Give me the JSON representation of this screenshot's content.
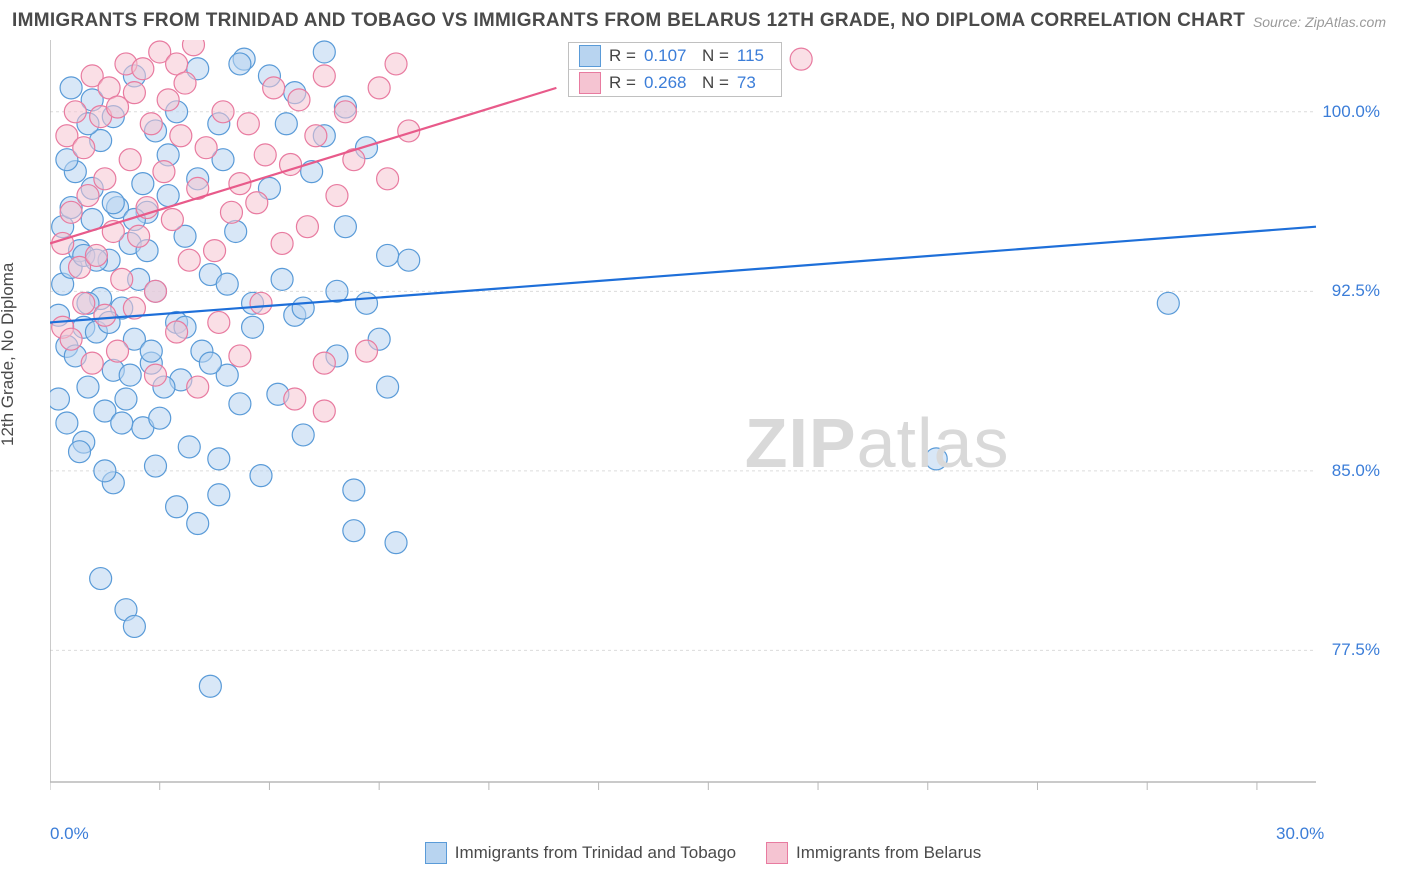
{
  "title": "IMMIGRANTS FROM TRINIDAD AND TOBAGO VS IMMIGRANTS FROM BELARUS 12TH GRADE, NO DIPLOMA CORRELATION CHART",
  "source": "Source: ZipAtlas.com",
  "y_axis_label": "12th Grade, No Diploma",
  "watermark_bold": "ZIP",
  "watermark_light": "atlas",
  "chart": {
    "type": "scatter",
    "background_color": "#ffffff",
    "grid_color": "#dcdcdc",
    "axis_color": "#b8b8b8",
    "tick_color": "#b8b8b8",
    "xlim": [
      0,
      30
    ],
    "ylim": [
      72,
      103
    ],
    "x_tick_labels": [
      {
        "x": 0,
        "label": "0.0%"
      },
      {
        "x": 30,
        "label": "30.0%"
      }
    ],
    "x_minor_ticks": [
      0,
      2.6,
      5.2,
      7.8,
      10.4,
      13,
      15.6,
      18.2,
      20.8,
      23.4,
      26,
      28.6
    ],
    "y_tick_labels": [
      {
        "y": 100,
        "label": "100.0%"
      },
      {
        "y": 92.5,
        "label": "92.5%"
      },
      {
        "y": 85,
        "label": "85.0%"
      },
      {
        "y": 77.5,
        "label": "77.5%"
      }
    ],
    "y_grid": [
      100,
      92.5,
      85,
      77.5
    ],
    "series": [
      {
        "name": "Immigrants from Trinidad and Tobago",
        "color_fill": "#b8d4f0",
        "color_stroke": "#5a9bd8",
        "marker_radius": 11,
        "fill_opacity": 0.55,
        "trend_color": "#1e6fd9",
        "trend_width": 2.2,
        "trend": {
          "x1": 0,
          "y1": 91.2,
          "x2": 30,
          "y2": 95.2
        },
        "R": "0.107",
        "N": "115",
        "points": [
          [
            0.2,
            91.5
          ],
          [
            0.3,
            92.8
          ],
          [
            0.4,
            90.2
          ],
          [
            0.5,
            93.5
          ],
          [
            0.6,
            89.8
          ],
          [
            0.7,
            94.2
          ],
          [
            0.8,
            91.0
          ],
          [
            0.9,
            88.5
          ],
          [
            1.0,
            95.5
          ],
          [
            1.1,
            90.8
          ],
          [
            1.2,
            92.2
          ],
          [
            1.3,
            87.5
          ],
          [
            1.4,
            93.8
          ],
          [
            1.5,
            89.2
          ],
          [
            1.6,
            96.0
          ],
          [
            1.7,
            91.8
          ],
          [
            1.8,
            88.0
          ],
          [
            1.9,
            94.5
          ],
          [
            2.0,
            90.5
          ],
          [
            2.1,
            93.0
          ],
          [
            2.2,
            86.8
          ],
          [
            2.3,
            95.8
          ],
          [
            2.4,
            89.5
          ],
          [
            2.5,
            92.5
          ],
          [
            2.6,
            87.2
          ],
          [
            2.8,
            96.5
          ],
          [
            3.0,
            91.2
          ],
          [
            3.1,
            88.8
          ],
          [
            3.2,
            94.8
          ],
          [
            3.3,
            86.0
          ],
          [
            3.5,
            97.2
          ],
          [
            3.6,
            90.0
          ],
          [
            3.8,
            93.2
          ],
          [
            4.0,
            85.5
          ],
          [
            4.1,
            98.0
          ],
          [
            4.2,
            89.0
          ],
          [
            4.4,
            95.0
          ],
          [
            4.5,
            87.8
          ],
          [
            4.6,
            102.2
          ],
          [
            4.8,
            92.0
          ],
          [
            5.0,
            84.8
          ],
          [
            5.2,
            96.8
          ],
          [
            5.4,
            88.2
          ],
          [
            5.6,
            99.5
          ],
          [
            5.8,
            91.5
          ],
          [
            6.0,
            86.5
          ],
          [
            6.2,
            97.5
          ],
          [
            6.5,
            102.5
          ],
          [
            6.8,
            89.8
          ],
          [
            7.0,
            95.2
          ],
          [
            7.2,
            84.2
          ],
          [
            7.5,
            98.5
          ],
          [
            7.8,
            90.5
          ],
          [
            8.0,
            88.5
          ],
          [
            8.2,
            82.0
          ],
          [
            8.5,
            93.8
          ],
          [
            1.2,
            80.5
          ],
          [
            1.8,
            79.2
          ],
          [
            2.5,
            85.2
          ],
          [
            3.0,
            83.5
          ],
          [
            3.5,
            82.8
          ],
          [
            4.0,
            84.0
          ],
          [
            2.0,
            78.5
          ],
          [
            0.8,
            86.2
          ],
          [
            1.5,
            84.5
          ],
          [
            4.5,
            102.0
          ],
          [
            5.2,
            101.5
          ],
          [
            5.8,
            100.8
          ],
          [
            6.5,
            99.0
          ],
          [
            7.0,
            100.2
          ],
          [
            0.5,
            101.0
          ],
          [
            1.0,
            100.5
          ],
          [
            1.5,
            99.8
          ],
          [
            2.0,
            101.5
          ],
          [
            2.5,
            99.2
          ],
          [
            3.0,
            100.0
          ],
          [
            3.5,
            101.8
          ],
          [
            4.0,
            99.5
          ],
          [
            3.8,
            76.0
          ],
          [
            7.2,
            82.5
          ],
          [
            2.2,
            97.0
          ],
          [
            2.8,
            98.2
          ],
          [
            1.0,
            96.8
          ],
          [
            0.6,
            97.5
          ],
          [
            0.3,
            95.2
          ],
          [
            0.4,
            98.0
          ],
          [
            0.8,
            94.0
          ],
          [
            1.5,
            96.2
          ],
          [
            2.0,
            95.5
          ],
          [
            1.2,
            98.8
          ],
          [
            0.5,
            96.0
          ],
          [
            0.9,
            99.5
          ],
          [
            3.2,
            91.0
          ],
          [
            3.8,
            89.5
          ],
          [
            4.2,
            92.8
          ],
          [
            4.8,
            91.0
          ],
          [
            5.5,
            93.0
          ],
          [
            6.0,
            91.8
          ],
          [
            6.8,
            92.5
          ],
          [
            7.5,
            92.0
          ],
          [
            8.0,
            94.0
          ],
          [
            0.2,
            88.0
          ],
          [
            0.4,
            87.0
          ],
          [
            0.7,
            85.8
          ],
          [
            1.1,
            93.8
          ],
          [
            1.4,
            91.2
          ],
          [
            1.9,
            89.0
          ],
          [
            2.3,
            94.2
          ],
          [
            2.7,
            88.5
          ],
          [
            2.4,
            90.0
          ],
          [
            1.7,
            87.0
          ],
          [
            1.3,
            85.0
          ],
          [
            0.9,
            92.0
          ],
          [
            26.5,
            92.0
          ],
          [
            21.0,
            85.5
          ]
        ]
      },
      {
        "name": "Immigrants from Belarus",
        "color_fill": "#f5c4d2",
        "color_stroke": "#e87ba0",
        "marker_radius": 11,
        "fill_opacity": 0.55,
        "trend_color": "#e85a8a",
        "trend_width": 2.2,
        "trend": {
          "x1": 0,
          "y1": 94.5,
          "x2": 12,
          "y2": 101.0
        },
        "R": "0.268",
        "N": "73",
        "points": [
          [
            0.3,
            94.5
          ],
          [
            0.5,
            95.8
          ],
          [
            0.7,
            93.5
          ],
          [
            0.9,
            96.5
          ],
          [
            1.1,
            94.0
          ],
          [
            1.3,
            97.2
          ],
          [
            1.5,
            95.0
          ],
          [
            1.7,
            93.0
          ],
          [
            1.9,
            98.0
          ],
          [
            2.1,
            94.8
          ],
          [
            2.3,
            96.0
          ],
          [
            2.5,
            92.5
          ],
          [
            2.7,
            97.5
          ],
          [
            2.9,
            95.5
          ],
          [
            3.1,
            99.0
          ],
          [
            3.3,
            93.8
          ],
          [
            3.5,
            96.8
          ],
          [
            3.7,
            98.5
          ],
          [
            3.9,
            94.2
          ],
          [
            4.1,
            100.0
          ],
          [
            4.3,
            95.8
          ],
          [
            4.5,
            97.0
          ],
          [
            4.7,
            99.5
          ],
          [
            4.9,
            96.2
          ],
          [
            5.1,
            98.2
          ],
          [
            5.3,
            101.0
          ],
          [
            5.5,
            94.5
          ],
          [
            5.7,
            97.8
          ],
          [
            5.9,
            100.5
          ],
          [
            6.1,
            95.2
          ],
          [
            6.3,
            99.0
          ],
          [
            6.5,
            101.5
          ],
          [
            6.8,
            96.5
          ],
          [
            7.0,
            100.0
          ],
          [
            7.2,
            98.0
          ],
          [
            7.5,
            90.0
          ],
          [
            7.8,
            101.0
          ],
          [
            8.0,
            97.2
          ],
          [
            8.2,
            102.0
          ],
          [
            8.5,
            99.2
          ],
          [
            0.4,
            99.0
          ],
          [
            0.6,
            100.0
          ],
          [
            0.8,
            98.5
          ],
          [
            1.0,
            101.5
          ],
          [
            1.2,
            99.8
          ],
          [
            1.4,
            101.0
          ],
          [
            1.6,
            100.2
          ],
          [
            1.8,
            102.0
          ],
          [
            2.0,
            100.8
          ],
          [
            2.2,
            101.8
          ],
          [
            2.4,
            99.5
          ],
          [
            2.6,
            102.5
          ],
          [
            2.8,
            100.5
          ],
          [
            3.0,
            102.0
          ],
          [
            3.2,
            101.2
          ],
          [
            3.4,
            102.8
          ],
          [
            0.3,
            91.0
          ],
          [
            0.5,
            90.5
          ],
          [
            0.8,
            92.0
          ],
          [
            1.0,
            89.5
          ],
          [
            1.3,
            91.5
          ],
          [
            1.6,
            90.0
          ],
          [
            2.0,
            91.8
          ],
          [
            2.5,
            89.0
          ],
          [
            3.0,
            90.8
          ],
          [
            3.5,
            88.5
          ],
          [
            4.0,
            91.2
          ],
          [
            4.5,
            89.8
          ],
          [
            5.0,
            92.0
          ],
          [
            5.8,
            88.0
          ],
          [
            6.5,
            89.5
          ],
          [
            17.8,
            102.2
          ],
          [
            6.5,
            87.5
          ]
        ]
      }
    ]
  },
  "legend_top": {
    "rows": [
      {
        "swatch_fill": "#b8d4f0",
        "swatch_stroke": "#5a9bd8",
        "r_label": "R =",
        "r_val": "0.107",
        "n_label": "N =",
        "n_val": "115"
      },
      {
        "swatch_fill": "#f5c4d2",
        "swatch_stroke": "#e87ba0",
        "r_label": "R =",
        "r_val": "0.268",
        "n_label": "N =",
        "n_val": "73"
      }
    ]
  },
  "legend_bottom": {
    "items": [
      {
        "swatch_fill": "#b8d4f0",
        "swatch_stroke": "#5a9bd8",
        "label": "Immigrants from Trinidad and Tobago"
      },
      {
        "swatch_fill": "#f5c4d2",
        "swatch_stroke": "#e87ba0",
        "label": "Immigrants from Belarus"
      }
    ]
  }
}
